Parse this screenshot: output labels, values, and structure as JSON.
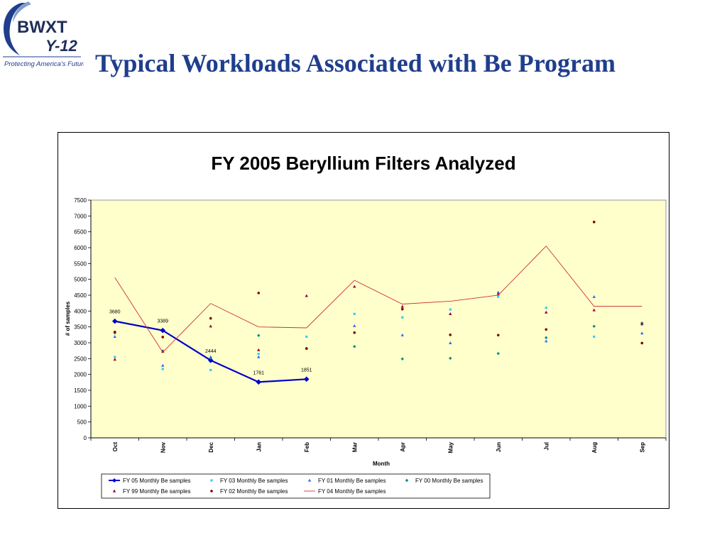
{
  "logo": {
    "brand_top": "BWXT",
    "brand_bottom": "Y-12",
    "tagline": "Protecting America's Future"
  },
  "slide": {
    "title": "Typical Workloads Associated with Be Program"
  },
  "chart_data": {
    "type": "line",
    "title": "FY 2005 Beryllium Filters Analyzed",
    "xlabel": "Month",
    "ylabel": "# of samples",
    "ylim": [
      0,
      7500
    ],
    "yticks": [
      0,
      500,
      1000,
      1500,
      2000,
      2500,
      3000,
      3500,
      4000,
      4500,
      5000,
      5500,
      6000,
      6500,
      7000,
      7500
    ],
    "categories": [
      "Oct",
      "Nov",
      "Dec",
      "Jan",
      "Feb",
      "Mar",
      "Apr",
      "May",
      "Jun",
      "Jul",
      "Aug",
      "Sep"
    ],
    "plot_background": "#ffffcc",
    "legend_position": "bottom",
    "series": [
      {
        "name": "FY 05 Monthly Be samples",
        "style": "line-diamond",
        "color": "#0000cc",
        "values": [
          3680,
          3389,
          2444,
          1761,
          1851,
          null,
          null,
          null,
          null,
          null,
          null,
          null
        ],
        "data_labels": [
          "3680",
          "3389",
          "2444",
          "1761",
          "1851"
        ]
      },
      {
        "name": "FY 03 Monthly Be samples",
        "style": "marker-square",
        "color": "#33ccff",
        "values": [
          2550,
          2170,
          2140,
          2650,
          3190,
          3910,
          3800,
          4050,
          4450,
          4100,
          3190,
          3570
        ]
      },
      {
        "name": "FY 01 Monthly Be samples",
        "style": "marker-triangle",
        "color": "#3366ff",
        "values": [
          3190,
          2280,
          2550,
          2550,
          2820,
          3530,
          3240,
          2990,
          4590,
          3050,
          4450,
          3300
        ]
      },
      {
        "name": "FY 00 Monthly Be samples",
        "style": "marker-diamond",
        "color": "#008b8b",
        "values": [
          3310,
          2740,
          2520,
          3230,
          2820,
          2880,
          2490,
          2510,
          2660,
          3160,
          3520,
          3620
        ]
      },
      {
        "name": "FY 99 Monthly Be samples",
        "style": "marker-triangle",
        "color": "#990033",
        "values": [
          2470,
          2720,
          3520,
          2770,
          4480,
          4770,
          4140,
          3910,
          4530,
          3960,
          4030,
          3600
        ]
      },
      {
        "name": "FY 02 Monthly Be samples",
        "style": "marker-circle",
        "color": "#800000",
        "values": [
          3340,
          3180,
          3770,
          4570,
          2820,
          3320,
          4060,
          3250,
          3240,
          3420,
          6810,
          2990
        ]
      },
      {
        "name": "FY 04 Monthly Be samples",
        "style": "line",
        "color": "#cc3333",
        "values": [
          5060,
          2700,
          4240,
          3500,
          3470,
          4970,
          4220,
          4310,
          4500,
          6050,
          4150,
          4150
        ]
      }
    ]
  }
}
